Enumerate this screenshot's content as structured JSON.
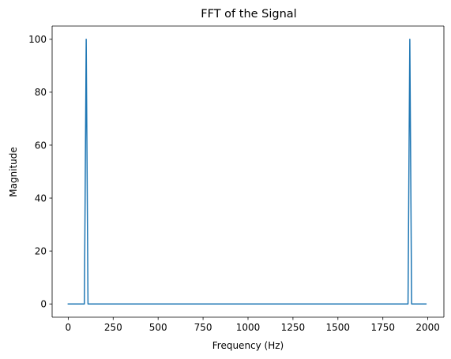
{
  "chart_data": {
    "type": "line",
    "title": "FFT of the Signal",
    "xlabel": "Frequency (Hz)",
    "ylabel": "Magnitude",
    "xlim": [
      -89.5,
      2089.5
    ],
    "ylim": [
      -5,
      105
    ],
    "xticks": [
      "0",
      "250",
      "500",
      "750",
      "1000",
      "1250",
      "1500",
      "1750",
      "2000"
    ],
    "yticks": [
      "0",
      "20",
      "40",
      "60",
      "80",
      "100"
    ],
    "grid": false,
    "legend": "none",
    "series": [
      {
        "color": "#1f77b4",
        "x": [
          0,
          90,
          100,
          110,
          1890,
          1900,
          1910,
          1990
        ],
        "y": [
          0,
          0,
          100,
          0,
          0,
          100,
          0,
          0
        ]
      }
    ]
  }
}
